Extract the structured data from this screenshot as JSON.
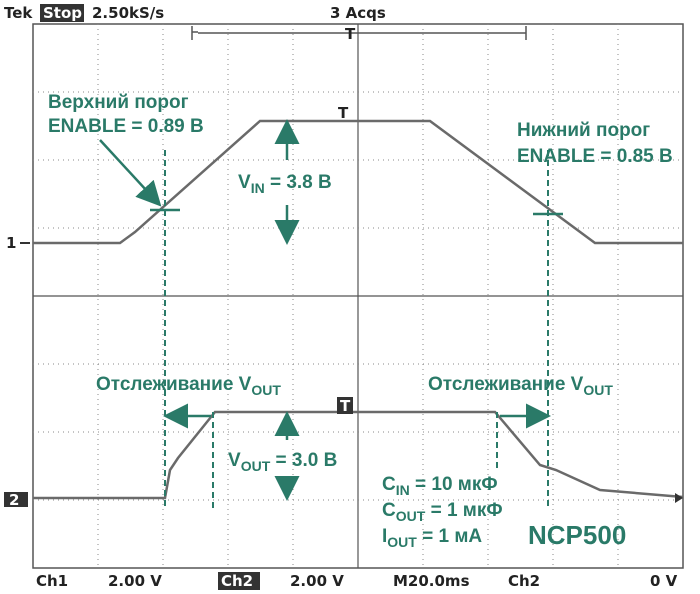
{
  "header": {
    "brand": "Tek",
    "status": "Stop",
    "rate": "2.50kS/s",
    "acqs": "3 Acqs",
    "trigger_marker": "T"
  },
  "markers": {
    "ch1": "1",
    "ch2": "2",
    "ch1_trigger": "T",
    "ch2_trigger": "T"
  },
  "annotations": {
    "upper_title": "Верхний порог",
    "upper_value": "ENABLE = 0.89 В",
    "lower_title": "Нижний порог",
    "lower_value": "ENABLE = 0.85 В",
    "vin": {
      "main": "V",
      "sub": "IN",
      "rest": " = 3.8 В"
    },
    "vout": {
      "main": "V",
      "sub": "OUT",
      "rest": " = 3.0 В"
    },
    "tracking_left": {
      "main": "Отслеживание V",
      "sub": "OUT"
    },
    "tracking_right": {
      "main": "Отслеживание V",
      "sub": "OUT"
    },
    "cin": {
      "main": "C",
      "sub": "IN",
      "rest": " = 10 мкФ"
    },
    "cout": {
      "main": "C",
      "sub": "OUT",
      "rest": " = 1 мкФ"
    },
    "iout": {
      "main": "I",
      "sub": "OUT",
      "rest": " = 1 мА"
    },
    "device": "NCP500"
  },
  "footer": {
    "ch1": "Ch1",
    "ch1_scale": "2.00 V",
    "ch2": "Ch2",
    "ch2_scale": "2.00 V",
    "timebase": "M20.0ms",
    "trigger_source": "Ch2",
    "trigger_level": "0 V"
  }
}
